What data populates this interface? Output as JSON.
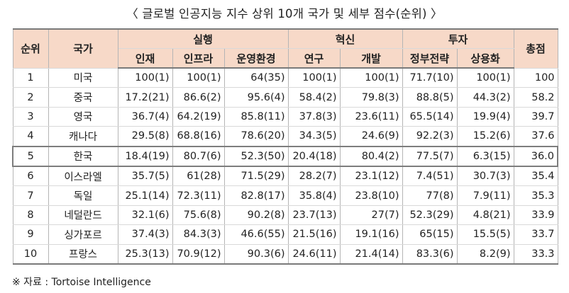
{
  "title": "〈 글로벌 인공지능 지수 상위 10개 국가 및 세부 점수(순위) 〉",
  "headers": {
    "rank": "순위",
    "country": "국가",
    "group_execution": "실행",
    "group_innovation": "혁신",
    "group_investment": "투자",
    "total": "총점",
    "sub": [
      "인재",
      "인프라",
      "운영환경",
      "연구",
      "개발",
      "정부전략",
      "상용화"
    ]
  },
  "rows": [
    {
      "rank": "1",
      "country": "미국",
      "cells": [
        "100(1)",
        "100(1)",
        "64(35)",
        "100(1)",
        "100(1)",
        "71.7(10)",
        "100(1)",
        "100"
      ]
    },
    {
      "rank": "2",
      "country": "중국",
      "cells": [
        "17.2(21)",
        "86.6(2)",
        "95.6(4)",
        "58.4(2)",
        "79.8(3)",
        "88.8(5)",
        "44.3(2)",
        "58.2"
      ]
    },
    {
      "rank": "3",
      "country": "영국",
      "cells": [
        "36.7(4)",
        "64.2(19)",
        "85.8(11)",
        "37.8(3)",
        "23.6(11)",
        "65.5(14)",
        "19.9(4)",
        "39.7"
      ]
    },
    {
      "rank": "4",
      "country": "캐나다",
      "cells": [
        "29.5(8)",
        "68.8(16)",
        "78.6(20)",
        "34.3(5)",
        "24.6(9)",
        "92.2(3)",
        "15.2(6)",
        "37.6"
      ]
    },
    {
      "rank": "5",
      "country": "한국",
      "cells": [
        "18.4(19)",
        "80.7(6)",
        "52.3(50)",
        "20.4(18)",
        "80.4(2)",
        "77.5(7)",
        "6.3(15)",
        "36.0"
      ]
    },
    {
      "rank": "6",
      "country": "이스라엘",
      "cells": [
        "35.7(5)",
        "61(28)",
        "71.5(29)",
        "28.2(7)",
        "23.1(12)",
        "7.4(51)",
        "30.7(3)",
        "35.4"
      ]
    },
    {
      "rank": "7",
      "country": "독일",
      "cells": [
        "25.1(14)",
        "72.3(11)",
        "82.8(17)",
        "35.8(4)",
        "23.8(10)",
        "77(8)",
        "7.9(11)",
        "35.3"
      ]
    },
    {
      "rank": "8",
      "country": "네덜란드",
      "cells": [
        "32.1(6)",
        "75.6(8)",
        "90.2(8)",
        "23.7(13)",
        "27(7)",
        "52.3(29)",
        "4.8(21)",
        "33.9"
      ]
    },
    {
      "rank": "9",
      "country": "싱가포르",
      "cells": [
        "37.4(3)",
        "84.3(3)",
        "46.6(55)",
        "21.5(16)",
        "19.1(16)",
        "65(15)",
        "15.5(5)",
        "33.7"
      ]
    },
    {
      "rank": "10",
      "country": "프랑스",
      "cells": [
        "25.3(13)",
        "70.9(12)",
        "90.3(6)",
        "24.6(11)",
        "21.4(14)",
        "83.3(6)",
        "8.2(9)",
        "33.3"
      ]
    }
  ],
  "source": "※ 자료 : Tortoise Intelligence"
}
